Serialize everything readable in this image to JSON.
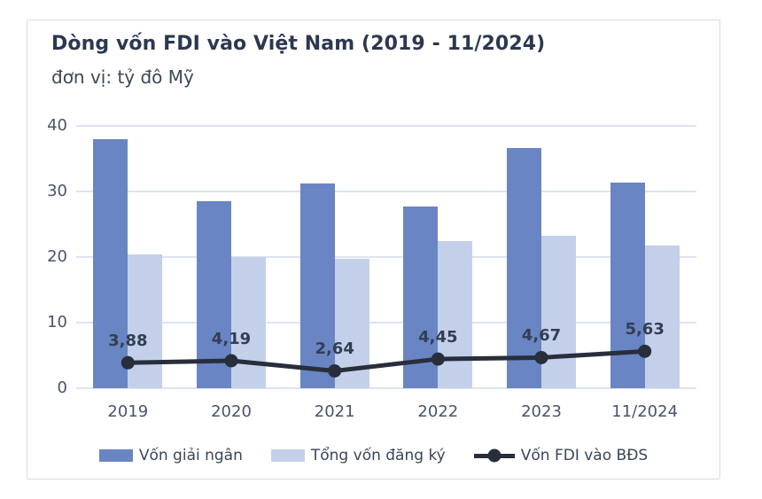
{
  "card": {
    "title": "Dòng vốn FDI vào Việt Nam (2019 - 11/2024)",
    "subtitle": "đơn vị: tỷ đô Mỹ"
  },
  "colors": {
    "bar_dark": "#6985c4",
    "bar_light": "#c4d0ea",
    "line": "#282e3b",
    "grid": "#dde3f0",
    "axis_text": "#49546b",
    "title_text": "#2c3850",
    "card_border": "#d7dbe3"
  },
  "chart_data": {
    "type": "bar+line",
    "title": "Dòng vốn FDI vào Việt Nam (2019 - 11/2024)",
    "subtitle_unit": "đơn vị: tỷ đô Mỹ",
    "categories": [
      "2019",
      "2020",
      "2021",
      "2022",
      "2023",
      "11/2024"
    ],
    "series": [
      {
        "name": "Vốn giải ngân",
        "type": "bar",
        "color_key": "bar_dark",
        "values": [
          38.0,
          28.5,
          31.2,
          27.7,
          36.6,
          31.4
        ]
      },
      {
        "name": "Tổng vốn đăng ký",
        "type": "bar",
        "color_key": "bar_light",
        "values": [
          20.4,
          20.0,
          19.7,
          22.4,
          23.2,
          21.7
        ]
      },
      {
        "name": "Vốn FDI vào BĐS",
        "type": "line",
        "color_key": "line",
        "values": [
          3.88,
          4.19,
          2.64,
          4.45,
          4.67,
          5.63
        ],
        "labels": [
          "3,88",
          "4,19",
          "2,64",
          "4,45",
          "4,67",
          "5,63"
        ]
      }
    ],
    "y_ticks": [
      0,
      10,
      20,
      30,
      40
    ],
    "ylim": [
      0,
      40
    ],
    "grid": true,
    "legend_position": "bottom"
  }
}
